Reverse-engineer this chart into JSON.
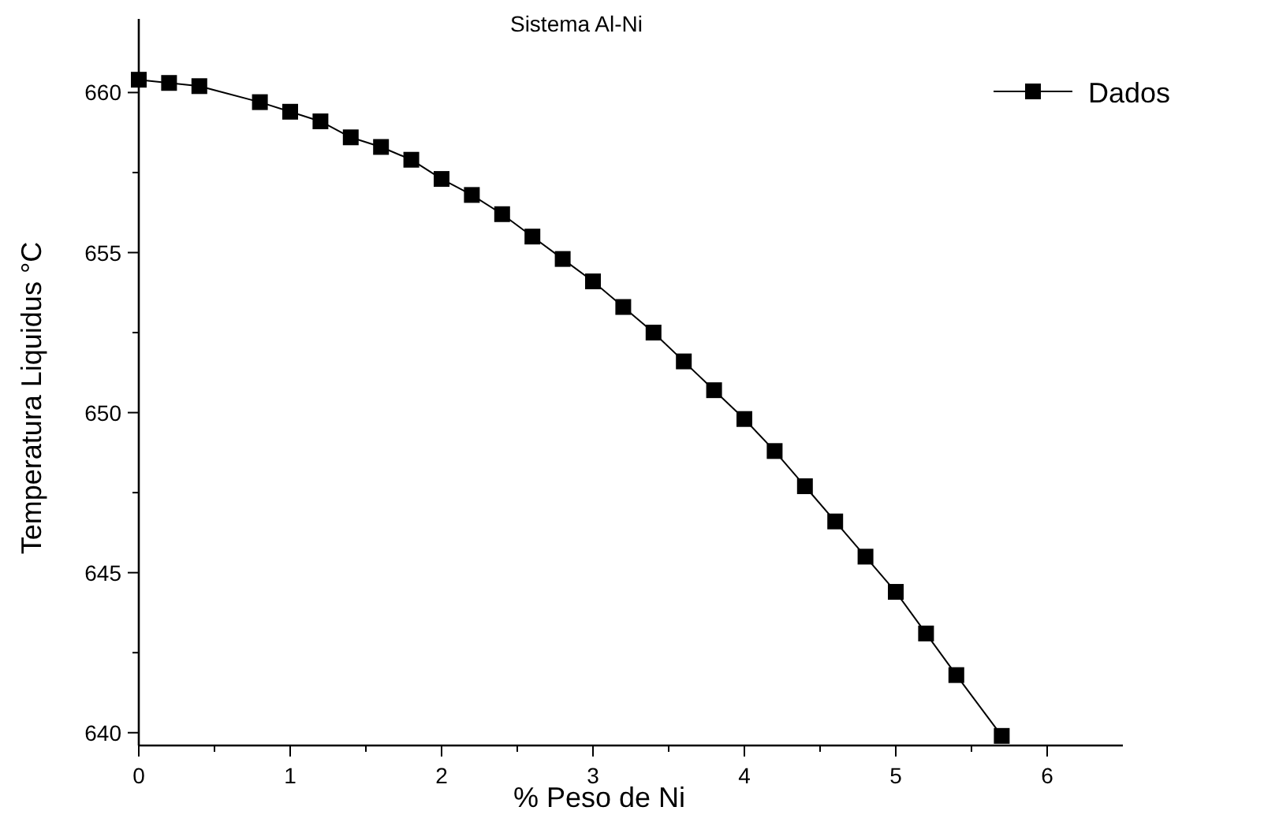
{
  "chart_data": {
    "type": "line",
    "title": "Sistema Al-Ni",
    "xlabel": "% Peso de Ni",
    "ylabel": "Temperatura Liquidus °C",
    "x": [
      0,
      0.2,
      0.4,
      0.8,
      1.0,
      1.2,
      1.4,
      1.6,
      1.8,
      2.0,
      2.2,
      2.4,
      2.6,
      2.8,
      3.0,
      3.2,
      3.4,
      3.6,
      3.8,
      4.0,
      4.2,
      4.4,
      4.6,
      4.8,
      5.0,
      5.2,
      5.4,
      5.7
    ],
    "series": [
      {
        "name": "Dados",
        "color": "#000000",
        "values": [
          660.4,
          660.3,
          660.2,
          659.7,
          659.4,
          659.1,
          658.6,
          658.3,
          657.9,
          657.3,
          656.8,
          656.2,
          655.5,
          654.8,
          654.1,
          653.3,
          652.5,
          651.6,
          650.7,
          649.8,
          648.8,
          647.7,
          646.6,
          645.5,
          644.4,
          643.1,
          641.8,
          639.9
        ]
      }
    ],
    "xlim": [
      0,
      6.5
    ],
    "ylim": [
      639.6,
      662.3
    ],
    "xticks": [
      0,
      {
        "value": 0.5,
        "label": null
      },
      1,
      {
        "value": 1.5,
        "label": null
      },
      2,
      {
        "value": 2.5,
        "label": null
      },
      3,
      {
        "value": 3.5,
        "label": null
      },
      4,
      {
        "value": 4.5,
        "label": null
      },
      5,
      {
        "value": 5.5,
        "label": null
      },
      6
    ],
    "yticks": [
      640,
      {
        "value": 642.5,
        "label": null
      },
      645,
      {
        "value": 647.5,
        "label": null
      },
      650,
      {
        "value": 652.5,
        "label": null
      },
      655,
      {
        "value": 657.5,
        "label": null
      },
      660
    ],
    "marker": "square",
    "line_style": "solid",
    "grid": false,
    "legend": "top right"
  }
}
